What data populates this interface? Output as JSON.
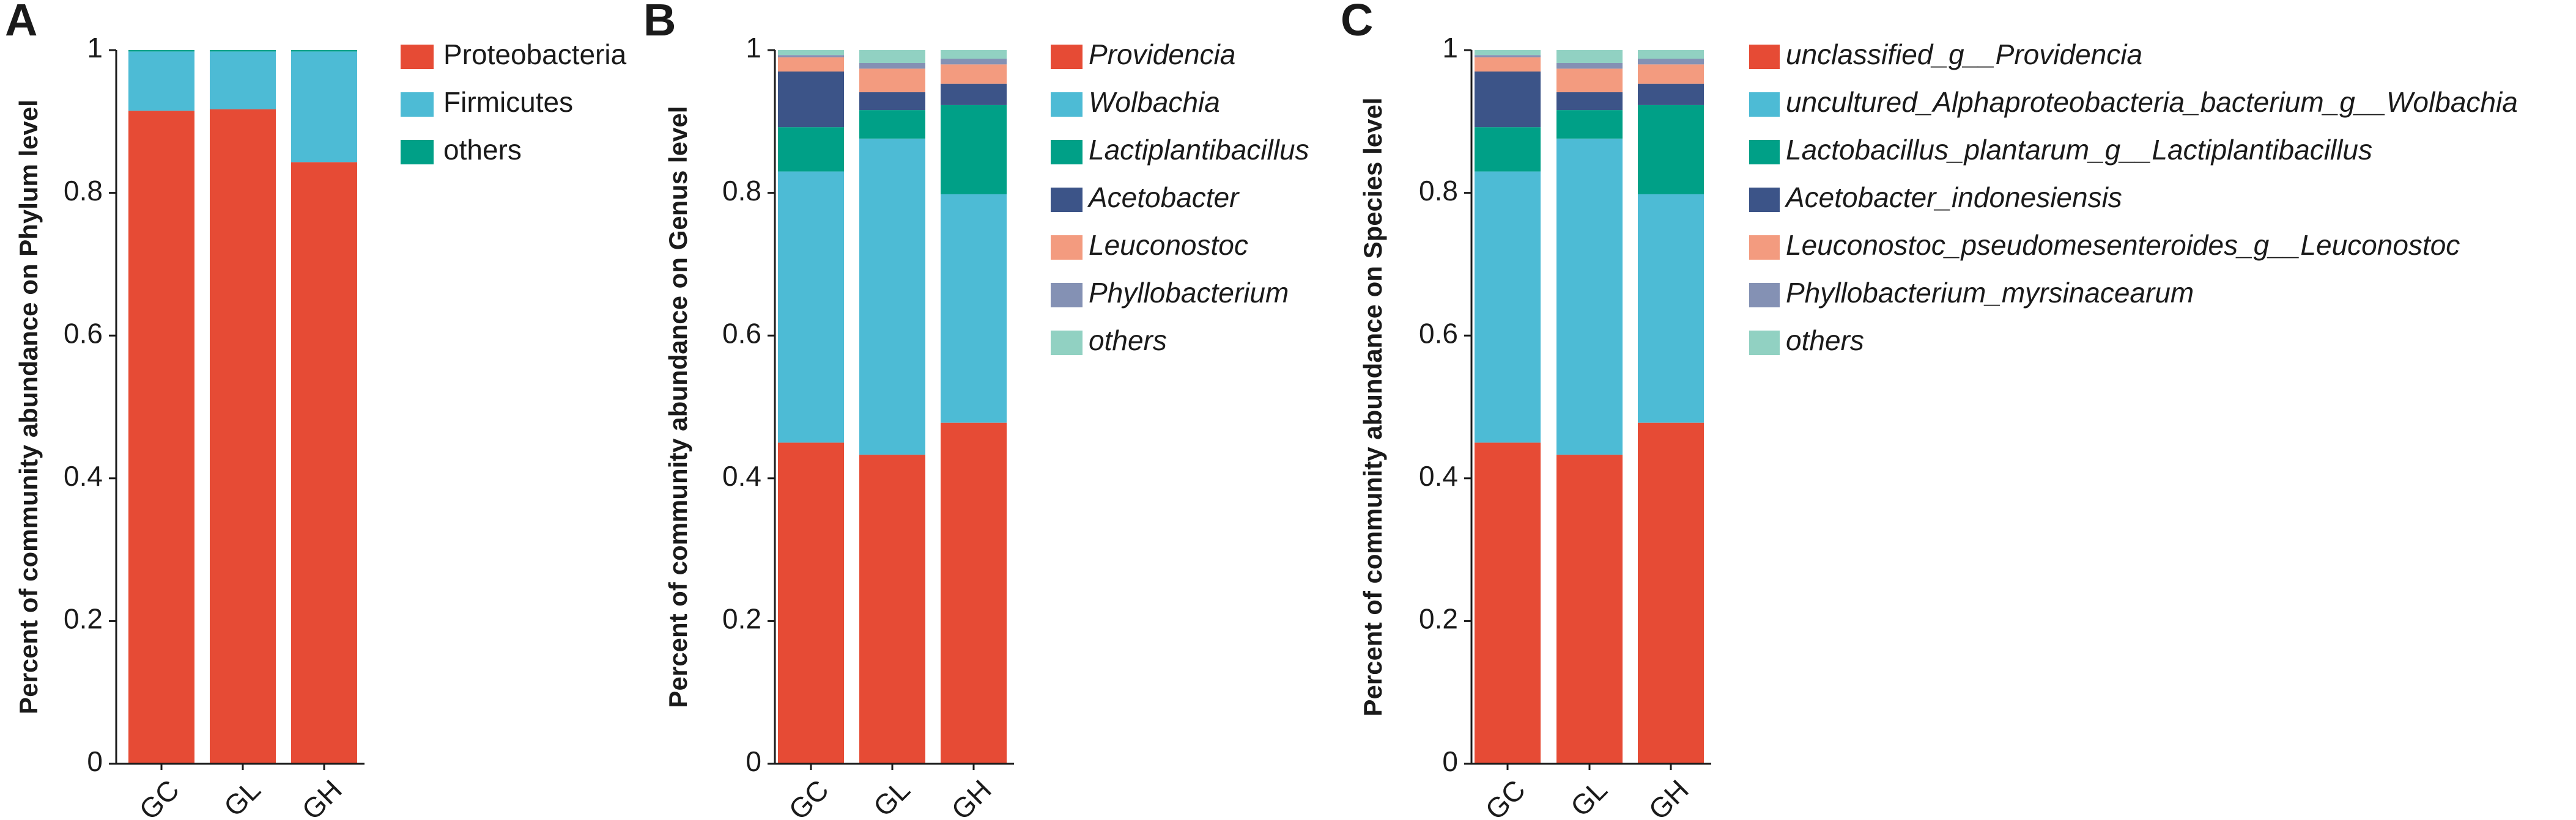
{
  "colors": {
    "red": "#E64B35",
    "blue": "#4DBBD5",
    "green": "#00A087",
    "navy": "#3C5488",
    "salmon": "#F39B7F",
    "lavender": "#8491B4",
    "mint": "#91D1C2"
  },
  "chart_data": [
    {
      "type": "bar",
      "stacked": true,
      "panel_letter": "A",
      "ylabel": "Percent of community abundance on Phylum level",
      "ylim": [
        0,
        1
      ],
      "yticks": [
        "0",
        "0.2",
        "0.4",
        "0.6",
        "0.8",
        "1"
      ],
      "categories": [
        "GC",
        "GL",
        "GH"
      ],
      "legend_italic": false,
      "series": [
        {
          "name": "Proteobacteria",
          "color": "#E64B35",
          "values": [
            0.915,
            0.917,
            0.843
          ]
        },
        {
          "name": "Firmicutes",
          "color": "#4DBBD5",
          "values": [
            0.083,
            0.081,
            0.155
          ]
        },
        {
          "name": "others",
          "color": "#00A087",
          "values": [
            0.002,
            0.002,
            0.002
          ]
        }
      ]
    },
    {
      "type": "bar",
      "stacked": true,
      "panel_letter": "B",
      "ylabel": "Percent of community abundance on Genus level",
      "ylim": [
        0,
        1
      ],
      "yticks": [
        "0",
        "0.2",
        "0.4",
        "0.6",
        "0.8",
        "1"
      ],
      "categories": [
        "GC",
        "GL",
        "GH"
      ],
      "legend_italic": true,
      "series": [
        {
          "name": "Providencia",
          "color": "#E64B35",
          "values": [
            0.45,
            0.433,
            0.478
          ]
        },
        {
          "name": "Wolbachia",
          "color": "#4DBBD5",
          "values": [
            0.38,
            0.443,
            0.32
          ]
        },
        {
          "name": "Lactiplantibacillus",
          "color": "#00A087",
          "values": [
            0.062,
            0.04,
            0.125
          ]
        },
        {
          "name": "Acetobacter",
          "color": "#3C5488",
          "values": [
            0.078,
            0.025,
            0.03
          ]
        },
        {
          "name": "Leuconostoc",
          "color": "#F39B7F",
          "values": [
            0.02,
            0.033,
            0.027
          ]
        },
        {
          "name": "Phyllobacterium",
          "color": "#8491B4",
          "values": [
            0.003,
            0.008,
            0.008
          ]
        },
        {
          "name": "others",
          "color": "#91D1C2",
          "values": [
            0.007,
            0.018,
            0.012
          ]
        }
      ]
    },
    {
      "type": "bar",
      "stacked": true,
      "panel_letter": "C",
      "ylabel": "Percent of community abundance on Species level",
      "ylim": [
        0,
        1
      ],
      "yticks": [
        "0",
        "0.2",
        "0.4",
        "0.6",
        "0.8",
        "1"
      ],
      "categories": [
        "GC",
        "GL",
        "GH"
      ],
      "legend_italic": true,
      "series": [
        {
          "name": "unclassified_g__Providencia",
          "color": "#E64B35",
          "values": [
            0.45,
            0.433,
            0.478
          ]
        },
        {
          "name": "uncultured_Alphaproteobacteria_bacterium_g__Wolbachia",
          "color": "#4DBBD5",
          "values": [
            0.38,
            0.443,
            0.32
          ]
        },
        {
          "name": "Lactobacillus_plantarum_g__Lactiplantibacillus",
          "color": "#00A087",
          "values": [
            0.062,
            0.04,
            0.125
          ]
        },
        {
          "name": "Acetobacter_indonesiensis",
          "color": "#3C5488",
          "values": [
            0.078,
            0.025,
            0.03
          ]
        },
        {
          "name": "Leuconostoc_pseudomesenteroides_g__Leuconostoc",
          "color": "#F39B7F",
          "values": [
            0.02,
            0.033,
            0.027
          ]
        },
        {
          "name": "Phyllobacterium_myrsinacearum",
          "color": "#8491B4",
          "values": [
            0.003,
            0.008,
            0.008
          ]
        },
        {
          "name": "others",
          "color": "#91D1C2",
          "values": [
            0.007,
            0.018,
            0.012
          ]
        }
      ]
    }
  ]
}
